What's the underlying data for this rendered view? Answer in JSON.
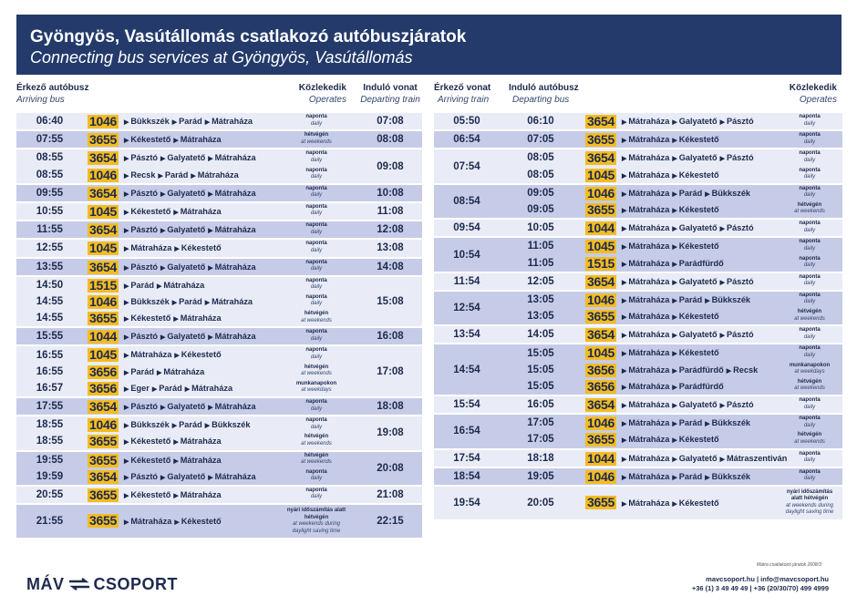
{
  "title": "Gyöngyös, Vasútállomás csatlakozó autóbuszjáratok",
  "subtitle": "Connecting bus services at Gyöngyös, Vasútállomás",
  "left_headers": {
    "arriving": "Érkező autóbusz",
    "arriving_en": "Arriving bus",
    "operates": "Közlekedik",
    "operates_en": "Operates",
    "departing": "Induló vonat",
    "departing_en": "Departing train"
  },
  "right_headers": {
    "arriving": "Érkező vonat",
    "arriving_en": "Arriving train",
    "departing": "Induló autóbusz",
    "departing_en": "Departing bus",
    "operates": "Közlekedik",
    "operates_en": "Operates"
  },
  "left_groups": [
    {
      "train": "07:08",
      "rows": [
        {
          "time": "06:40",
          "bus": "1046",
          "route": [
            "Bükkszék",
            "Parád",
            "Mátraháza"
          ],
          "op": "naponta",
          "op_en": "daily"
        }
      ]
    },
    {
      "train": "08:08",
      "rows": [
        {
          "time": "07:55",
          "bus": "3655",
          "route": [
            "Kékestető",
            "Mátraháza"
          ],
          "op": "hétvégén",
          "op_en": "at weekends"
        }
      ]
    },
    {
      "train": "09:08",
      "rows": [
        {
          "time": "08:55",
          "bus": "3654",
          "route": [
            "Pásztó",
            "Galyatető",
            "Mátraháza"
          ],
          "op": "naponta",
          "op_en": "daily"
        },
        {
          "time": "08:55",
          "bus": "1046",
          "route": [
            "Recsk",
            "Parád",
            "Mátraháza"
          ],
          "op": "naponta",
          "op_en": "daily"
        }
      ]
    },
    {
      "train": "10:08",
      "rows": [
        {
          "time": "09:55",
          "bus": "3654",
          "route": [
            "Pásztó",
            "Galyatető",
            "Mátraháza"
          ],
          "op": "naponta",
          "op_en": "daily"
        }
      ]
    },
    {
      "train": "11:08",
      "rows": [
        {
          "time": "10:55",
          "bus": "1045",
          "route": [
            "Kékestető",
            "Mátraháza"
          ],
          "op": "naponta",
          "op_en": "daily"
        }
      ]
    },
    {
      "train": "12:08",
      "rows": [
        {
          "time": "11:55",
          "bus": "3654",
          "route": [
            "Pásztó",
            "Galyatető",
            "Mátraháza"
          ],
          "op": "naponta",
          "op_en": "daily"
        }
      ]
    },
    {
      "train": "13:08",
      "rows": [
        {
          "time": "12:55",
          "bus": "1045",
          "route": [
            "Mátraháza",
            "Kékestető"
          ],
          "op": "naponta",
          "op_en": "daily"
        }
      ]
    },
    {
      "train": "14:08",
      "rows": [
        {
          "time": "13:55",
          "bus": "3654",
          "route": [
            "Pásztó",
            "Galyatető",
            "Mátraháza"
          ],
          "op": "naponta",
          "op_en": "daily"
        }
      ]
    },
    {
      "train": "15:08",
      "rows": [
        {
          "time": "14:50",
          "bus": "1515",
          "route": [
            "Parád",
            "Mátraháza"
          ],
          "op": "naponta",
          "op_en": "daily"
        },
        {
          "time": "14:55",
          "bus": "1046",
          "route": [
            "Bükkszék",
            "Parád",
            "Mátraháza"
          ],
          "op": "naponta",
          "op_en": "daily"
        },
        {
          "time": "14:55",
          "bus": "3655",
          "route": [
            "Kékestető",
            "Mátraháza"
          ],
          "op": "hétvégén",
          "op_en": "at weekends"
        }
      ]
    },
    {
      "train": "16:08",
      "rows": [
        {
          "time": "15:55",
          "bus": "1044",
          "route": [
            "Pásztó",
            "Galyatető",
            "Mátraháza"
          ],
          "op": "naponta",
          "op_en": "daily"
        }
      ]
    },
    {
      "train": "17:08",
      "rows": [
        {
          "time": "16:55",
          "bus": "1045",
          "route": [
            "Mátraháza",
            "Kékestető"
          ],
          "op": "naponta",
          "op_en": "daily"
        },
        {
          "time": "16:55",
          "bus": "3656",
          "route": [
            "Parád",
            "Mátraháza"
          ],
          "op": "hétvégén",
          "op_en": "at weekends"
        },
        {
          "time": "16:57",
          "bus": "3656",
          "route": [
            "Eger",
            "Parád",
            "Mátraháza"
          ],
          "op": "munkanapokon",
          "op_en": "at weekdays"
        }
      ]
    },
    {
      "train": "18:08",
      "rows": [
        {
          "time": "17:55",
          "bus": "3654",
          "route": [
            "Pásztó",
            "Galyatető",
            "Mátraháza"
          ],
          "op": "naponta",
          "op_en": "daily"
        }
      ]
    },
    {
      "train": "19:08",
      "rows": [
        {
          "time": "18:55",
          "bus": "1046",
          "route": [
            "Bükkszék",
            "Parád",
            "Bükkszék"
          ],
          "op": "naponta",
          "op_en": "daily"
        },
        {
          "time": "18:55",
          "bus": "3655",
          "route": [
            "Kékestető",
            "Mátraháza"
          ],
          "op": "hétvégén",
          "op_en": "at weekends"
        }
      ]
    },
    {
      "train": "20:08",
      "rows": [
        {
          "time": "19:55",
          "bus": "3655",
          "route": [
            "Kékestető",
            "Mátraháza"
          ],
          "op": "hétvégén",
          "op_en": "at weekends"
        },
        {
          "time": "19:59",
          "bus": "3654",
          "route": [
            "Pásztó",
            "Galyatető",
            "Mátraháza"
          ],
          "op": "naponta",
          "op_en": "daily"
        }
      ]
    },
    {
      "train": "21:08",
      "rows": [
        {
          "time": "20:55",
          "bus": "3655",
          "route": [
            "Kékestető",
            "Mátraháza"
          ],
          "op": "naponta",
          "op_en": "daily"
        }
      ]
    },
    {
      "train": "22:15",
      "rows": [
        {
          "time": "21:55",
          "bus": "3655",
          "route": [
            "Mátraháza",
            "Kékestető"
          ],
          "op": "nyári időszámítás alatt hétvégén",
          "op_en": "at weekends during daylight saving time",
          "tall": true
        }
      ]
    }
  ],
  "right_groups": [
    {
      "train": "05:50",
      "rows": [
        {
          "time": "06:10",
          "bus": "3654",
          "route": [
            "Mátraháza",
            "Galyatető",
            "Pásztó"
          ],
          "op": "naponta",
          "op_en": "daily"
        }
      ]
    },
    {
      "train": "06:54",
      "rows": [
        {
          "time": "07:05",
          "bus": "3655",
          "route": [
            "Mátraháza",
            "Kékestető"
          ],
          "op": "naponta",
          "op_en": "daily"
        }
      ]
    },
    {
      "train": "07:54",
      "rows": [
        {
          "time": "08:05",
          "bus": "3654",
          "route": [
            "Mátraháza",
            "Galyatető",
            "Pásztó"
          ],
          "op": "naponta",
          "op_en": "daily"
        },
        {
          "time": "08:05",
          "bus": "1045",
          "route": [
            "Mátraháza",
            "Kékestető"
          ],
          "op": "naponta",
          "op_en": "daily"
        }
      ]
    },
    {
      "train": "08:54",
      "rows": [
        {
          "time": "09:05",
          "bus": "1046",
          "route": [
            "Mátraháza",
            "Parád",
            "Bükkszék"
          ],
          "op": "naponta",
          "op_en": "daily"
        },
        {
          "time": "09:05",
          "bus": "3655",
          "route": [
            "Mátraháza",
            "Kékestető"
          ],
          "op": "hétvégén",
          "op_en": "at weekends"
        }
      ]
    },
    {
      "train": "09:54",
      "rows": [
        {
          "time": "10:05",
          "bus": "1044",
          "route": [
            "Mátraháza",
            "Galyatető",
            "Pásztó"
          ],
          "op": "naponta",
          "op_en": "daily"
        }
      ]
    },
    {
      "train": "10:54",
      "rows": [
        {
          "time": "11:05",
          "bus": "1045",
          "route": [
            "Mátraháza",
            "Kékestető"
          ],
          "op": "naponta",
          "op_en": "daily"
        },
        {
          "time": "11:05",
          "bus": "1515",
          "route": [
            "Mátraháza",
            "Parádfürdő"
          ],
          "op": "naponta",
          "op_en": "daily"
        }
      ]
    },
    {
      "train": "11:54",
      "rows": [
        {
          "time": "12:05",
          "bus": "3654",
          "route": [
            "Mátraháza",
            "Galyatető",
            "Pásztó"
          ],
          "op": "naponta",
          "op_en": "daily"
        }
      ]
    },
    {
      "train": "12:54",
      "rows": [
        {
          "time": "13:05",
          "bus": "1046",
          "route": [
            "Mátraháza",
            "Parád",
            "Bükkszék"
          ],
          "op": "naponta",
          "op_en": "daily"
        },
        {
          "time": "13:05",
          "bus": "3655",
          "route": [
            "Mátraháza",
            "Kékestető"
          ],
          "op": "hétvégén",
          "op_en": "at weekends"
        }
      ]
    },
    {
      "train": "13:54",
      "rows": [
        {
          "time": "14:05",
          "bus": "3654",
          "route": [
            "Mátraháza",
            "Galyatető",
            "Pásztó"
          ],
          "op": "naponta",
          "op_en": "daily"
        }
      ]
    },
    {
      "train": "14:54",
      "rows": [
        {
          "time": "15:05",
          "bus": "1045",
          "route": [
            "Mátraháza",
            "Kékestető"
          ],
          "op": "naponta",
          "op_en": "daily"
        },
        {
          "time": "15:05",
          "bus": "3656",
          "route": [
            "Mátraháza",
            "Parádfürdő",
            "Recsk"
          ],
          "op": "munkanapokon",
          "op_en": "at weekdays"
        },
        {
          "time": "15:05",
          "bus": "3656",
          "route": [
            "Mátraháza",
            "Parádfürdő"
          ],
          "op": "hétvégén",
          "op_en": "at weekends"
        }
      ]
    },
    {
      "train": "15:54",
      "rows": [
        {
          "time": "16:05",
          "bus": "3654",
          "route": [
            "Mátraháza",
            "Galyatető",
            "Pásztó"
          ],
          "op": "naponta",
          "op_en": "daily"
        }
      ]
    },
    {
      "train": "16:54",
      "rows": [
        {
          "time": "17:05",
          "bus": "1046",
          "route": [
            "Mátraháza",
            "Parád",
            "Bükkszék"
          ],
          "op": "naponta",
          "op_en": "daily"
        },
        {
          "time": "17:05",
          "bus": "3655",
          "route": [
            "Mátraháza",
            "Kékestető"
          ],
          "op": "hétvégén",
          "op_en": "at weekends"
        }
      ]
    },
    {
      "train": "17:54",
      "rows": [
        {
          "time": "18:18",
          "bus": "1044",
          "route": [
            "Mátraháza",
            "Galyatető",
            "Mátraszentiván"
          ],
          "op": "naponta",
          "op_en": "daily"
        }
      ]
    },
    {
      "train": "18:54",
      "rows": [
        {
          "time": "19:05",
          "bus": "1046",
          "route": [
            "Mátraháza",
            "Parád",
            "Bükkszék"
          ],
          "op": "naponta",
          "op_en": "daily"
        }
      ]
    },
    {
      "train": "19:54",
      "rows": [
        {
          "time": "20:05",
          "bus": "3655",
          "route": [
            "Mátraháza",
            "Kékestető"
          ],
          "op": "nyári időszámítás alatt hétvégén",
          "op_en": "at weekends during daylight saving time",
          "tall": true
        }
      ]
    }
  ],
  "footnote": "Mátra csatlakozó járatok 2608/3",
  "logo_left": "MÁV",
  "logo_right": "CSOPORT",
  "contact_line1": "mavcsoport.hu | info@mavcsoport.hu",
  "contact_line2": "+36 (1) 3 49 49 49 | +36 (20/30/70) 499 4999",
  "colors": {
    "header": "#233a6b",
    "badge": "#f3bc24",
    "row_dark": "#c6cce7",
    "row_light": "#e9ecf6"
  },
  "icons": [
    "route-arrow-icon",
    "mav-logo-icon"
  ]
}
